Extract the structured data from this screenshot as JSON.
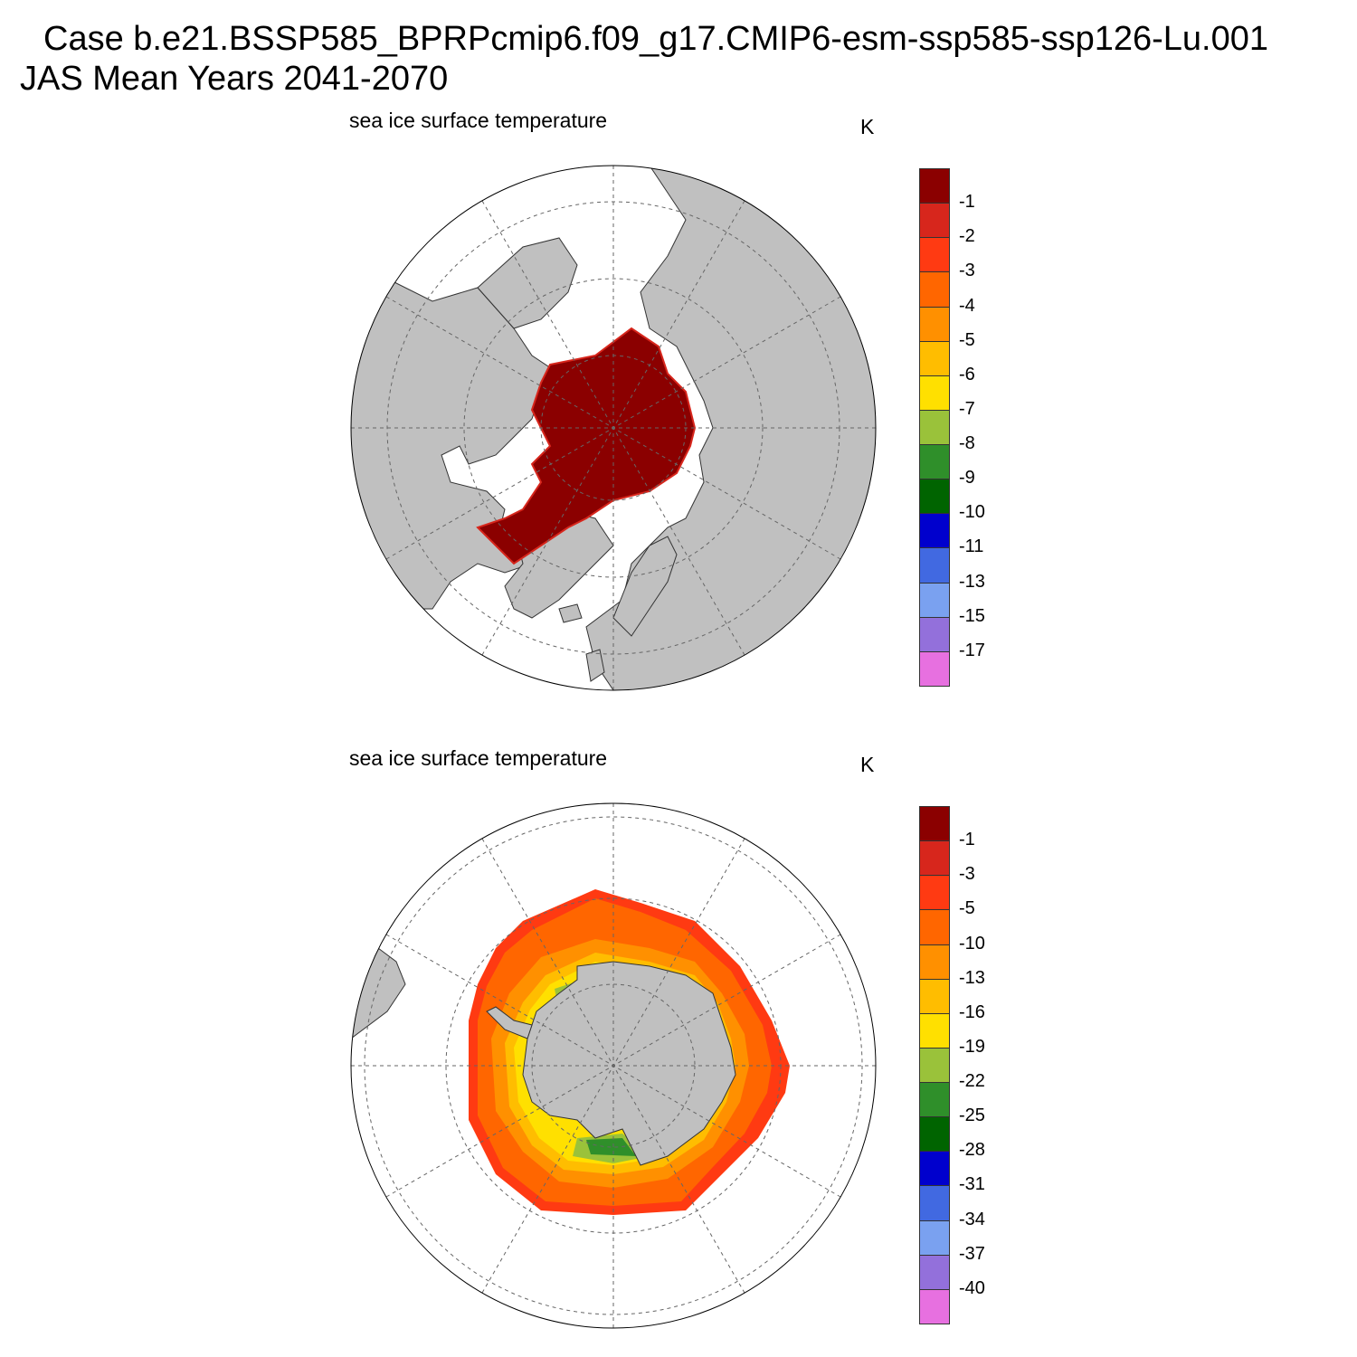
{
  "title": {
    "line1": "Case b.e21.BSSP585_BPRPcmip6.f09_g17.CMIP6-esm-ssp585-ssp126-Lu.001",
    "line2": "JAS Mean   Years 2041-2070"
  },
  "colors": {
    "land": "#c0c0c0",
    "ocean": "#ffffff",
    "grid": "#666666",
    "palette": [
      "#8b0000",
      "#d7261c",
      "#ff3a12",
      "#ff6600",
      "#ff9000",
      "#ffbd00",
      "#ffe000",
      "#9ac23a",
      "#2f8f2a",
      "#006400",
      "#0000cd",
      "#4169e1",
      "#7aa1f0",
      "#9370db",
      "#e770e0"
    ]
  },
  "panels": [
    {
      "id": "north",
      "title": "sea ice surface temperature",
      "units": "K",
      "hemisphere": "Northern",
      "colorbar_labels": [
        "-1",
        "-2",
        "-3",
        "-4",
        "-5",
        "-6",
        "-7",
        "-8",
        "-9",
        "-10",
        "-11",
        "-13",
        "-15",
        "-17"
      ]
    },
    {
      "id": "south",
      "title": "sea ice surface temperature",
      "units": "K",
      "hemisphere": "Southern",
      "colorbar_labels": [
        "-1",
        "-3",
        "-5",
        "-10",
        "-13",
        "-16",
        "-19",
        "-22",
        "-25",
        "-28",
        "-31",
        "-34",
        "-37",
        "-40"
      ]
    }
  ]
}
